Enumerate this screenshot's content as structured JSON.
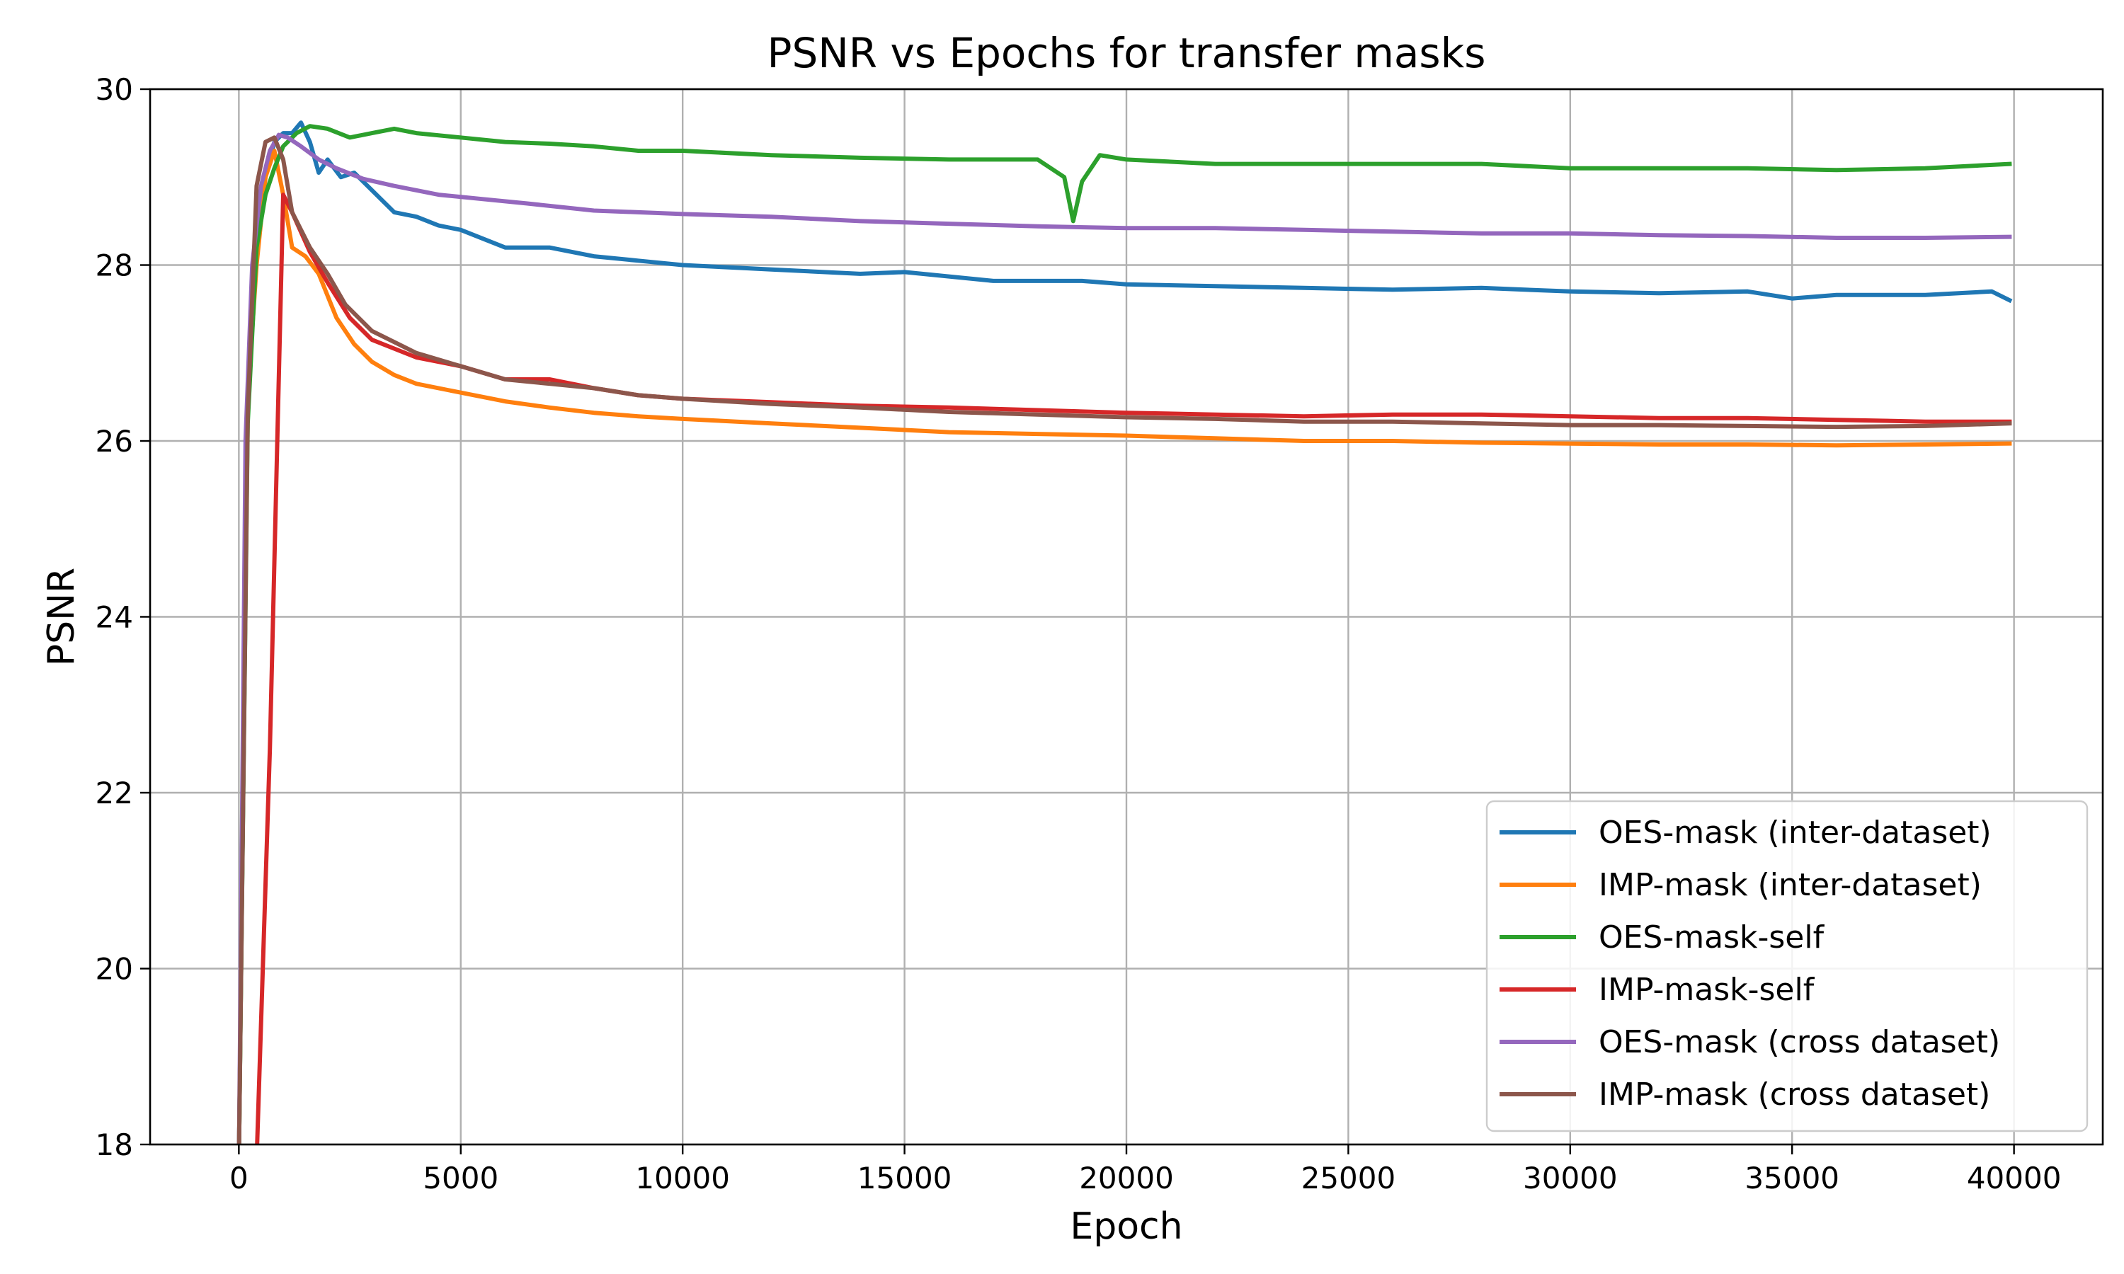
{
  "chart_data": {
    "type": "line",
    "title": "PSNR vs Epochs for transfer masks",
    "xlabel": "Epoch",
    "ylabel": "PSNR",
    "xlim": [
      -2000,
      42000
    ],
    "ylim": [
      18,
      30
    ],
    "xticks": [
      0,
      5000,
      10000,
      15000,
      20000,
      25000,
      30000,
      35000,
      40000
    ],
    "xtick_labels": [
      "0",
      "5000",
      "10000",
      "15000",
      "20000",
      "25000",
      "30000",
      "35000",
      "40000"
    ],
    "yticks": [
      18,
      20,
      22,
      24,
      26,
      28,
      30
    ],
    "ytick_labels": [
      "18",
      "20",
      "22",
      "24",
      "26",
      "28",
      "30"
    ],
    "grid": true,
    "legend_position": "lower-right",
    "series": [
      {
        "name": "OES-mask (inter-dataset)",
        "color": "#1f77b4",
        "points": [
          [
            0,
            17.8
          ],
          [
            200,
            26.5
          ],
          [
            400,
            28.3
          ],
          [
            600,
            29.0
          ],
          [
            800,
            29.4
          ],
          [
            1000,
            29.5
          ],
          [
            1200,
            29.5
          ],
          [
            1400,
            29.62
          ],
          [
            1600,
            29.4
          ],
          [
            1800,
            29.05
          ],
          [
            2000,
            29.2
          ],
          [
            2300,
            29.0
          ],
          [
            2600,
            29.05
          ],
          [
            3000,
            28.85
          ],
          [
            3500,
            28.6
          ],
          [
            4000,
            28.55
          ],
          [
            4500,
            28.45
          ],
          [
            5000,
            28.4
          ],
          [
            6000,
            28.2
          ],
          [
            7000,
            28.2
          ],
          [
            8000,
            28.1
          ],
          [
            9000,
            28.05
          ],
          [
            10000,
            28.0
          ],
          [
            12000,
            27.95
          ],
          [
            14000,
            27.9
          ],
          [
            15000,
            27.92
          ],
          [
            17000,
            27.82
          ],
          [
            19000,
            27.82
          ],
          [
            20000,
            27.78
          ],
          [
            22000,
            27.76
          ],
          [
            24000,
            27.74
          ],
          [
            26000,
            27.72
          ],
          [
            28000,
            27.74
          ],
          [
            30000,
            27.7
          ],
          [
            32000,
            27.68
          ],
          [
            34000,
            27.7
          ],
          [
            35000,
            27.62
          ],
          [
            36000,
            27.66
          ],
          [
            38000,
            27.66
          ],
          [
            39500,
            27.7
          ],
          [
            39900,
            27.6
          ]
        ]
      },
      {
        "name": "IMP-mask (inter-dataset)",
        "color": "#ff7f0e",
        "points": [
          [
            0,
            17.8
          ],
          [
            200,
            26.5
          ],
          [
            400,
            28.0
          ],
          [
            600,
            29.0
          ],
          [
            800,
            29.3
          ],
          [
            1000,
            28.8
          ],
          [
            1200,
            28.2
          ],
          [
            1500,
            28.1
          ],
          [
            1800,
            27.9
          ],
          [
            2200,
            27.4
          ],
          [
            2600,
            27.1
          ],
          [
            3000,
            26.9
          ],
          [
            3500,
            26.75
          ],
          [
            4000,
            26.65
          ],
          [
            5000,
            26.55
          ],
          [
            6000,
            26.45
          ],
          [
            7000,
            26.38
          ],
          [
            8000,
            26.32
          ],
          [
            9000,
            26.28
          ],
          [
            10000,
            26.25
          ],
          [
            12000,
            26.2
          ],
          [
            14000,
            26.15
          ],
          [
            16000,
            26.1
          ],
          [
            18000,
            26.08
          ],
          [
            20000,
            26.06
          ],
          [
            22000,
            26.03
          ],
          [
            24000,
            26.0
          ],
          [
            26000,
            26.0
          ],
          [
            28000,
            25.98
          ],
          [
            30000,
            25.97
          ],
          [
            32000,
            25.96
          ],
          [
            34000,
            25.96
          ],
          [
            36000,
            25.95
          ],
          [
            38000,
            25.96
          ],
          [
            39900,
            25.97
          ]
        ]
      },
      {
        "name": "OES-mask-self",
        "color": "#2ca02c",
        "points": [
          [
            0,
            17.8
          ],
          [
            200,
            26.2
          ],
          [
            400,
            28.2
          ],
          [
            600,
            28.8
          ],
          [
            800,
            29.1
          ],
          [
            1000,
            29.35
          ],
          [
            1300,
            29.5
          ],
          [
            1600,
            29.58
          ],
          [
            2000,
            29.55
          ],
          [
            2500,
            29.45
          ],
          [
            3000,
            29.5
          ],
          [
            3500,
            29.55
          ],
          [
            4000,
            29.5
          ],
          [
            5000,
            29.45
          ],
          [
            6000,
            29.4
          ],
          [
            7000,
            29.38
          ],
          [
            8000,
            29.35
          ],
          [
            9000,
            29.3
          ],
          [
            10000,
            29.3
          ],
          [
            12000,
            29.25
          ],
          [
            14000,
            29.22
          ],
          [
            16000,
            29.2
          ],
          [
            18000,
            29.2
          ],
          [
            18600,
            29.0
          ],
          [
            18800,
            28.5
          ],
          [
            19000,
            28.95
          ],
          [
            19400,
            29.25
          ],
          [
            20000,
            29.2
          ],
          [
            22000,
            29.15
          ],
          [
            24000,
            29.15
          ],
          [
            26000,
            29.15
          ],
          [
            28000,
            29.15
          ],
          [
            30000,
            29.1
          ],
          [
            32000,
            29.1
          ],
          [
            34000,
            29.1
          ],
          [
            36000,
            29.08
          ],
          [
            38000,
            29.1
          ],
          [
            39900,
            29.15
          ]
        ]
      },
      {
        "name": "IMP-mask-self",
        "color": "#d62728",
        "points": [
          [
            400,
            17.8
          ],
          [
            700,
            22.5
          ],
          [
            1000,
            28.8
          ],
          [
            1200,
            28.6
          ],
          [
            1600,
            28.15
          ],
          [
            2000,
            27.8
          ],
          [
            2500,
            27.4
          ],
          [
            3000,
            27.15
          ],
          [
            4000,
            26.95
          ],
          [
            5000,
            26.85
          ],
          [
            6000,
            26.7
          ],
          [
            7000,
            26.7
          ],
          [
            8000,
            26.6
          ],
          [
            9000,
            26.52
          ],
          [
            10000,
            26.48
          ],
          [
            12000,
            26.44
          ],
          [
            14000,
            26.4
          ],
          [
            16000,
            26.38
          ],
          [
            18000,
            26.35
          ],
          [
            20000,
            26.32
          ],
          [
            22000,
            26.3
          ],
          [
            24000,
            26.28
          ],
          [
            26000,
            26.3
          ],
          [
            28000,
            26.3
          ],
          [
            30000,
            26.28
          ],
          [
            32000,
            26.26
          ],
          [
            34000,
            26.26
          ],
          [
            36000,
            26.24
          ],
          [
            38000,
            26.22
          ],
          [
            39900,
            26.22
          ]
        ]
      },
      {
        "name": "OES-mask (cross dataset)",
        "color": "#9467bd",
        "points": [
          [
            0,
            17.8
          ],
          [
            150,
            26.0
          ],
          [
            300,
            28.0
          ],
          [
            500,
            28.9
          ],
          [
            700,
            29.3
          ],
          [
            900,
            29.48
          ],
          [
            1100,
            29.45
          ],
          [
            1400,
            29.35
          ],
          [
            1800,
            29.2
          ],
          [
            2200,
            29.1
          ],
          [
            2800,
            28.98
          ],
          [
            3500,
            28.9
          ],
          [
            4500,
            28.8
          ],
          [
            5500,
            28.75
          ],
          [
            6500,
            28.7
          ],
          [
            8000,
            28.62
          ],
          [
            9000,
            28.6
          ],
          [
            10000,
            28.58
          ],
          [
            12000,
            28.55
          ],
          [
            14000,
            28.5
          ],
          [
            16000,
            28.47
          ],
          [
            18000,
            28.44
          ],
          [
            20000,
            28.42
          ],
          [
            22000,
            28.42
          ],
          [
            24000,
            28.4
          ],
          [
            26000,
            28.38
          ],
          [
            28000,
            28.36
          ],
          [
            30000,
            28.36
          ],
          [
            32000,
            28.34
          ],
          [
            34000,
            28.33
          ],
          [
            36000,
            28.31
          ],
          [
            38000,
            28.31
          ],
          [
            39900,
            28.32
          ]
        ]
      },
      {
        "name": "IMP-mask (cross dataset)",
        "color": "#8c564b",
        "points": [
          [
            0,
            17.8
          ],
          [
            200,
            26.3
          ],
          [
            400,
            28.9
          ],
          [
            600,
            29.4
          ],
          [
            800,
            29.45
          ],
          [
            1000,
            29.2
          ],
          [
            1200,
            28.6
          ],
          [
            1600,
            28.2
          ],
          [
            2000,
            27.9
          ],
          [
            2400,
            27.55
          ],
          [
            3000,
            27.25
          ],
          [
            3600,
            27.1
          ],
          [
            4000,
            27.0
          ],
          [
            5000,
            26.85
          ],
          [
            6000,
            26.7
          ],
          [
            7000,
            26.65
          ],
          [
            8000,
            26.6
          ],
          [
            9000,
            26.52
          ],
          [
            10000,
            26.48
          ],
          [
            12000,
            26.42
          ],
          [
            14000,
            26.38
          ],
          [
            16000,
            26.33
          ],
          [
            18000,
            26.3
          ],
          [
            20000,
            26.27
          ],
          [
            22000,
            26.25
          ],
          [
            24000,
            26.22
          ],
          [
            26000,
            26.22
          ],
          [
            28000,
            26.2
          ],
          [
            30000,
            26.18
          ],
          [
            32000,
            26.18
          ],
          [
            34000,
            26.17
          ],
          [
            36000,
            26.16
          ],
          [
            38000,
            26.17
          ],
          [
            39900,
            26.2
          ]
        ]
      }
    ]
  }
}
